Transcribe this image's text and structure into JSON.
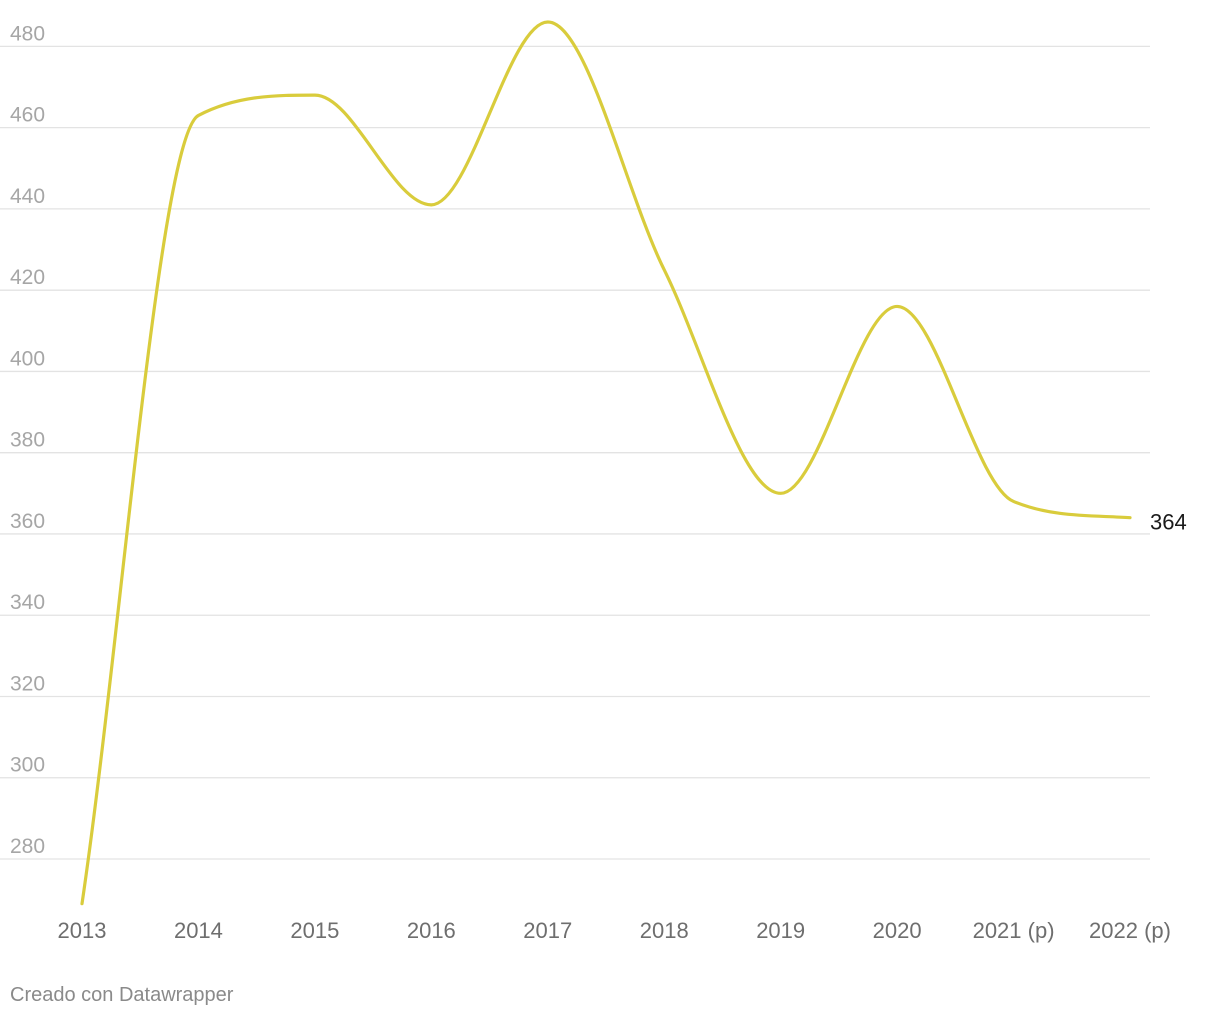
{
  "chart_data": {
    "type": "line",
    "categories": [
      "2013",
      "2014",
      "2015",
      "2016",
      "2017",
      "2018",
      "2019",
      "2020",
      "2021 (p)",
      "2022 (p)"
    ],
    "series": [
      {
        "values": [
          269,
          463,
          468,
          441,
          486,
          425,
          370,
          416,
          368,
          364
        ]
      }
    ],
    "yticks": [
      280,
      300,
      320,
      340,
      360,
      380,
      400,
      420,
      440,
      460,
      480
    ],
    "ylim": [
      269,
      486
    ],
    "grid": true,
    "end_label": "364",
    "line_color": "#d9cc3c"
  },
  "footer": {
    "credit": "Creado con Datawrapper"
  }
}
